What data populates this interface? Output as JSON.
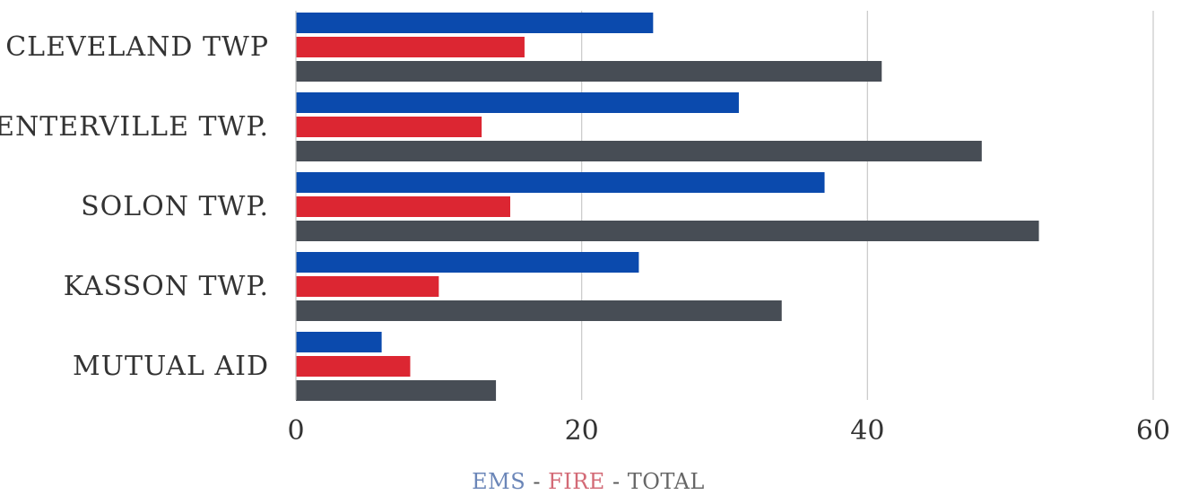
{
  "chart_data": {
    "type": "bar",
    "orientation": "horizontal",
    "categories": [
      "CLEVELAND TWP",
      "CENTERVILLE TWP.",
      "SOLON TWP.",
      "KASSON TWP.",
      "MUTUAL AID"
    ],
    "series": [
      {
        "name": "EMS",
        "color": "#0b4aad",
        "values": [
          25,
          31,
          37,
          24,
          6
        ]
      },
      {
        "name": "FIRE",
        "color": "#dc2632",
        "values": [
          16,
          13,
          15,
          10,
          8
        ]
      },
      {
        "name": "TOTAL",
        "color": "#474d55",
        "values": [
          41,
          48,
          52,
          34,
          14
        ]
      }
    ],
    "xlim": [
      0,
      60
    ],
    "xticks": [
      0,
      20,
      40,
      60
    ],
    "grid": true,
    "legend_placement": "bottom",
    "legend_separator": "-",
    "legend_text_colors": {
      "EMS": "#6b86b8",
      "FIRE": "#d36a76",
      "TOTAL": "#666666",
      "separator": "#555555"
    },
    "gridline_color": "#c8c8c8",
    "axis_color": "#bfbfbf"
  }
}
